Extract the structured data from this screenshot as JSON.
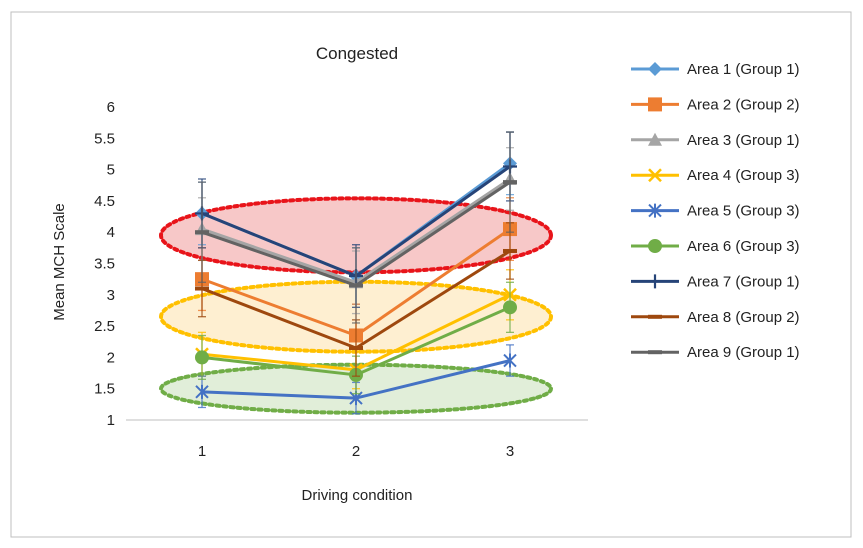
{
  "chart_data": {
    "type": "line",
    "title": "Congested",
    "xlabel": "Driving condition",
    "ylabel": "Mean MCH Scale",
    "x": [
      1,
      2,
      3
    ],
    "xticks": [
      "1",
      "2",
      "3"
    ],
    "ylim": [
      1,
      6
    ],
    "yticks": [
      "1",
      "1.5",
      "2",
      "2.5",
      "3",
      "3.5",
      "4",
      "4.5",
      "5",
      "5.5",
      "6"
    ],
    "grid": false,
    "legend_position": "right",
    "series": [
      {
        "name": "Area 1 (Group 1)",
        "values": [
          4.3,
          3.3,
          5.1
        ],
        "errors": [
          0.5,
          0.45,
          0.5
        ],
        "color": "#5b9bd5",
        "marker": "diamond"
      },
      {
        "name": "Area 2 (Group 2)",
        "values": [
          3.25,
          2.35,
          4.05
        ],
        "errors": [
          0.5,
          0.5,
          0.5
        ],
        "color": "#ed7d31",
        "marker": "square"
      },
      {
        "name": "Area 3 (Group 1)",
        "values": [
          4.05,
          3.2,
          4.85
        ],
        "errors": [
          0.5,
          0.5,
          0.5
        ],
        "color": "#a5a5a5",
        "marker": "triangle"
      },
      {
        "name": "Area 4 (Group 3)",
        "values": [
          2.05,
          1.8,
          3.0
        ],
        "errors": [
          0.35,
          0.3,
          0.4
        ],
        "color": "#ffc000",
        "marker": "x"
      },
      {
        "name": "Area 5 (Group 3)",
        "values": [
          1.45,
          1.35,
          1.95
        ],
        "errors": [
          0.25,
          0.25,
          0.25
        ],
        "color": "#4472c4",
        "marker": "star"
      },
      {
        "name": "Area 6 (Group 3)",
        "values": [
          2.0,
          1.72,
          2.8
        ],
        "errors": [
          0.35,
          0.3,
          0.4
        ],
        "color": "#70ad47",
        "marker": "circle"
      },
      {
        "name": "Area 7 (Group 1)",
        "values": [
          4.3,
          3.3,
          5.05
        ],
        "errors": [
          0.55,
          0.5,
          0.55
        ],
        "color": "#264478",
        "marker": "plus"
      },
      {
        "name": "Area 8 (Group 2)",
        "values": [
          3.1,
          2.15,
          3.7
        ],
        "errors": [
          0.45,
          0.45,
          0.45
        ],
        "color": "#9e480e",
        "marker": "dash"
      },
      {
        "name": "Area 9 (Group 1)",
        "values": [
          4.0,
          3.15,
          4.8
        ],
        "errors": [
          0.8,
          0.6,
          0.8
        ],
        "color": "#636363",
        "marker": "dash"
      }
    ],
    "highlight_ellipses": [
      {
        "cx": 2,
        "cy": 3.95,
        "color": "#e8141a",
        "fill": "#f4b6b6"
      },
      {
        "cx": 2,
        "cy": 2.65,
        "color": "#ffc000",
        "fill": "#fde9c2"
      },
      {
        "cx": 2,
        "cy": 1.5,
        "color": "#70ad47",
        "fill": "#d7e8cc"
      }
    ]
  }
}
